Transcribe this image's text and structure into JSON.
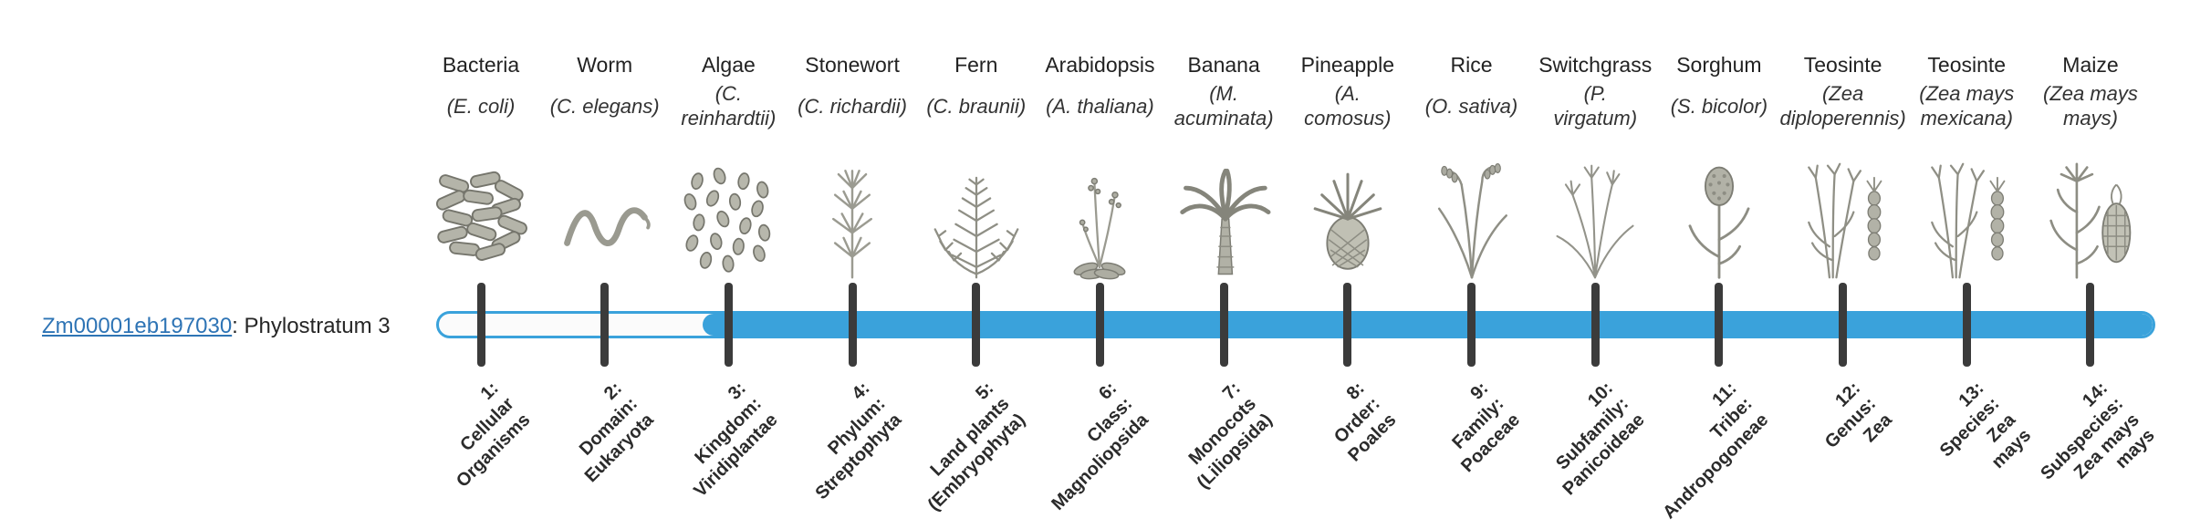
{
  "gene": {
    "id": "Zm00001eb197030",
    "suffix": ": Phylostratum 3",
    "phylostratum": 3
  },
  "colors": {
    "bar": "#3AA2DB",
    "tick": "#3b3b3b",
    "link": "#2E74B5",
    "text": "#262626",
    "illustration": "#8f8f85"
  },
  "strata": [
    {
      "num": 1,
      "organism": "Bacteria",
      "species_lines": [
        "(E. coli)"
      ],
      "label_lines": [
        "1:",
        "Cellular",
        "Organisms"
      ],
      "icon": "bacteria"
    },
    {
      "num": 2,
      "organism": "Worm",
      "species_lines": [
        "(C. elegans)"
      ],
      "label_lines": [
        "2:",
        "Domain:",
        "Eukaryota"
      ],
      "icon": "worm"
    },
    {
      "num": 3,
      "organism": "Algae",
      "species_lines": [
        "(C.",
        "reinhardtii)"
      ],
      "label_lines": [
        "3:",
        "Kingdom:",
        "Viridiplantae"
      ],
      "icon": "algae"
    },
    {
      "num": 4,
      "organism": "Stonewort",
      "species_lines": [
        "(C. richardii)"
      ],
      "label_lines": [
        "4:",
        "Phylum:",
        "Streptophyta"
      ],
      "icon": "stonewort"
    },
    {
      "num": 5,
      "organism": "Fern",
      "species_lines": [
        "(C. braunii)"
      ],
      "label_lines": [
        "5:",
        "Land plants",
        "(Embryophyta)"
      ],
      "icon": "fern"
    },
    {
      "num": 6,
      "organism": "Arabidopsis",
      "species_lines": [
        "(A. thaliana)"
      ],
      "label_lines": [
        "6:",
        "Class:",
        "Magnoliopsida"
      ],
      "icon": "arabidopsis"
    },
    {
      "num": 7,
      "organism": "Banana",
      "species_lines": [
        "(M.",
        "acuminata)"
      ],
      "label_lines": [
        "7:",
        "Monocots",
        "(Liliopsida)"
      ],
      "icon": "banana"
    },
    {
      "num": 8,
      "organism": "Pineapple",
      "species_lines": [
        "(A.",
        "comosus)"
      ],
      "label_lines": [
        "8:",
        "Order:",
        "Poales"
      ],
      "icon": "pineapple"
    },
    {
      "num": 9,
      "organism": "Rice",
      "species_lines": [
        "(O. sativa)"
      ],
      "label_lines": [
        "9:",
        "Family:",
        "Poaceae"
      ],
      "icon": "rice"
    },
    {
      "num": 10,
      "organism": "Switchgrass",
      "species_lines": [
        "(P.",
        "virgatum)"
      ],
      "label_lines": [
        "10:",
        "Subfamily:",
        "Panicoideae"
      ],
      "icon": "switchgrass"
    },
    {
      "num": 11,
      "organism": "Sorghum",
      "species_lines": [
        "(S. bicolor)"
      ],
      "label_lines": [
        "11:",
        "Tribe:",
        "Andropogoneae"
      ],
      "icon": "sorghum"
    },
    {
      "num": 12,
      "organism": "Teosinte",
      "species_lines": [
        "(Zea",
        "diploperennis)"
      ],
      "label_lines": [
        "12:",
        "Genus:",
        "Zea"
      ],
      "icon": "teosinte"
    },
    {
      "num": 13,
      "organism": "Teosinte",
      "species_lines": [
        "(Zea mays",
        "mexicana)"
      ],
      "label_lines": [
        "13:",
        "Species:",
        "Zea",
        "mays"
      ],
      "icon": "teosinte"
    },
    {
      "num": 14,
      "organism": "Maize",
      "species_lines": [
        "(Zea mays",
        "mays)"
      ],
      "label_lines": [
        "14:",
        "Subspecies:",
        "Zea mays",
        "mays"
      ],
      "icon": "maize"
    }
  ]
}
